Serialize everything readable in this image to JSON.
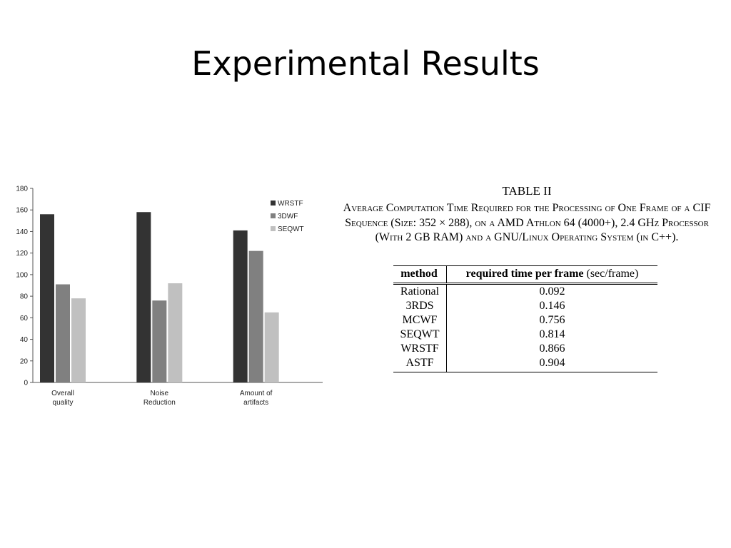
{
  "slide": {
    "title": "Experimental Results"
  },
  "chart_data": {
    "type": "bar",
    "categories": [
      [
        "Overall",
        "quality"
      ],
      [
        "Noise",
        "Reduction"
      ],
      [
        "Amount of",
        "artifacts"
      ]
    ],
    "series": [
      {
        "name": "WRSTF",
        "values": [
          156,
          158,
          141
        ],
        "color": "#333333"
      },
      {
        "name": "3DWF",
        "values": [
          91,
          76,
          122
        ],
        "color": "#808080"
      },
      {
        "name": "SEQWT",
        "values": [
          78,
          92,
          65
        ],
        "color": "#c0c0c0"
      }
    ],
    "ylim": [
      0,
      180
    ],
    "yticks": [
      "0",
      "20",
      "40",
      "60",
      "80",
      "100",
      "120",
      "140",
      "160",
      "180"
    ],
    "grid": false,
    "legend": "top-right",
    "title": "",
    "xlabel": "",
    "ylabel": ""
  },
  "table": {
    "label": "TABLE II",
    "caption": "Average Computation Time Required for the Processing of One Frame of a CIF Sequence (Size: 352 × 288), on a AMD Athlon 64 (4000+), 2.4 GHz Processor (With 2 GB RAM) and a GNU/Linux Operating System (in C++).",
    "headers": {
      "method": "method",
      "time_bold": "required time per frame",
      "time_unit": "(sec/frame)"
    },
    "rows": [
      {
        "method": "Rational",
        "time": "0.092"
      },
      {
        "method": "3RDS",
        "time": "0.146"
      },
      {
        "method": "MCWF",
        "time": "0.756"
      },
      {
        "method": "SEQWT",
        "time": "0.814"
      },
      {
        "method": "WRSTF",
        "time": "0.866"
      },
      {
        "method": "ASTF",
        "time": "0.904"
      }
    ]
  }
}
